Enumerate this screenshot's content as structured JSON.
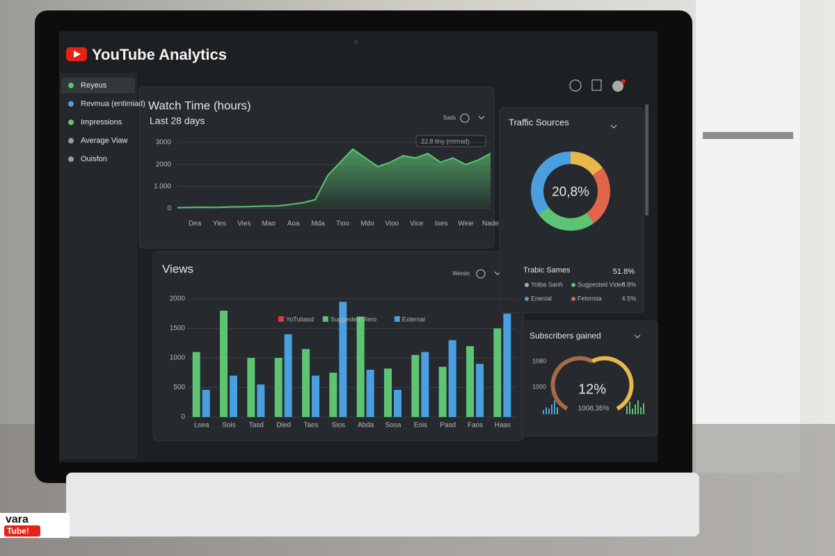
{
  "header": {
    "title": "YouTube Analytics"
  },
  "sidebar": {
    "items": [
      {
        "label": "Reyeus",
        "color": "#5cc472"
      },
      {
        "label": "Revmua (entimiad)",
        "color": "#4a9fe0"
      },
      {
        "label": "Impressions",
        "color": "#5cc472"
      },
      {
        "label": "Average Viaw",
        "color": "#9a9a9a"
      },
      {
        "label": "Ouisfon",
        "color": "#9a9a9a"
      }
    ]
  },
  "watch_time": {
    "title": "Watch Time (hours)",
    "subtitle": "Last 28 days",
    "menu": "Sads",
    "annotation": "22.8 tiny (mimad)",
    "color": "#5cc472",
    "categories": [
      "Dea",
      "Yies",
      "Vies",
      "Mao",
      "Aoa",
      "Mda",
      "Tioo",
      "Mdo",
      "Vioo",
      "Vice",
      "Ixes",
      "Weie",
      "Nade"
    ],
    "values": [
      40,
      50,
      60,
      50,
      70,
      80,
      90,
      110,
      120,
      180,
      260,
      400,
      1500,
      2100,
      2700,
      2300,
      1900,
      2100,
      2400,
      2300,
      2500,
      2100,
      2300,
      2000,
      2200,
      2500
    ],
    "ylim": [
      0,
      3000
    ],
    "yticks": [
      0,
      {
        "value": 1000,
        "label": "1.000"
      },
      2000,
      3000
    ]
  },
  "views": {
    "title": "Views",
    "menu": "Wends",
    "legend": [
      {
        "name": "YoTubasd",
        "color": "#e53935"
      },
      {
        "name": "Suggested Viero",
        "color": "#5cc472"
      },
      {
        "name": "External",
        "color": "#4a9fe0"
      }
    ],
    "categories": [
      "Lsea",
      "Sois",
      "Tasd",
      "Died",
      "Taes",
      "Sios",
      "Abda",
      "Sosa",
      "Eois",
      "Pasd",
      "Faos",
      "Haas"
    ],
    "series": [
      {
        "color": "#5cc472",
        "values": [
          1100,
          1800,
          1000,
          1000,
          1150,
          750,
          1700,
          820,
          1050,
          850,
          1200,
          1500
        ]
      },
      {
        "color": "#4a9fe0",
        "values": [
          460,
          700,
          550,
          1400,
          700,
          1950,
          800,
          460,
          1100,
          1300,
          900,
          1750
        ]
      }
    ],
    "ylim": [
      0,
      2000
    ],
    "yticks": [
      0,
      500,
      1000,
      1500,
      2000
    ]
  },
  "traffic": {
    "title": "Traffic Sources",
    "center": "20,8%",
    "values": [
      15,
      25,
      25,
      35
    ],
    "colors": [
      "#e8b84a",
      "#e0654a",
      "#5cc472",
      "#4a9fe0"
    ],
    "legend_title": "Trabic Sames",
    "legend_value": "51.8%",
    "items": [
      {
        "label": "Yolba Sanh",
        "color": "#aaaaaa"
      },
      {
        "label": "Sugpested Video",
        "color": "#5cc472",
        "value": "8.8%"
      },
      {
        "label": "Enenial",
        "color": "#4a9fe0"
      },
      {
        "label": "Fetonsia",
        "color": "#e0654a",
        "value": "4.5%"
      }
    ]
  },
  "subscribers": {
    "title": "Subscribers gained",
    "ticks": [
      "1080",
      "1000"
    ],
    "gauge_label": "12%",
    "gauge_sub": "1008,36%"
  },
  "watermark": {
    "line1": "vara",
    "line2": "Tube!"
  }
}
